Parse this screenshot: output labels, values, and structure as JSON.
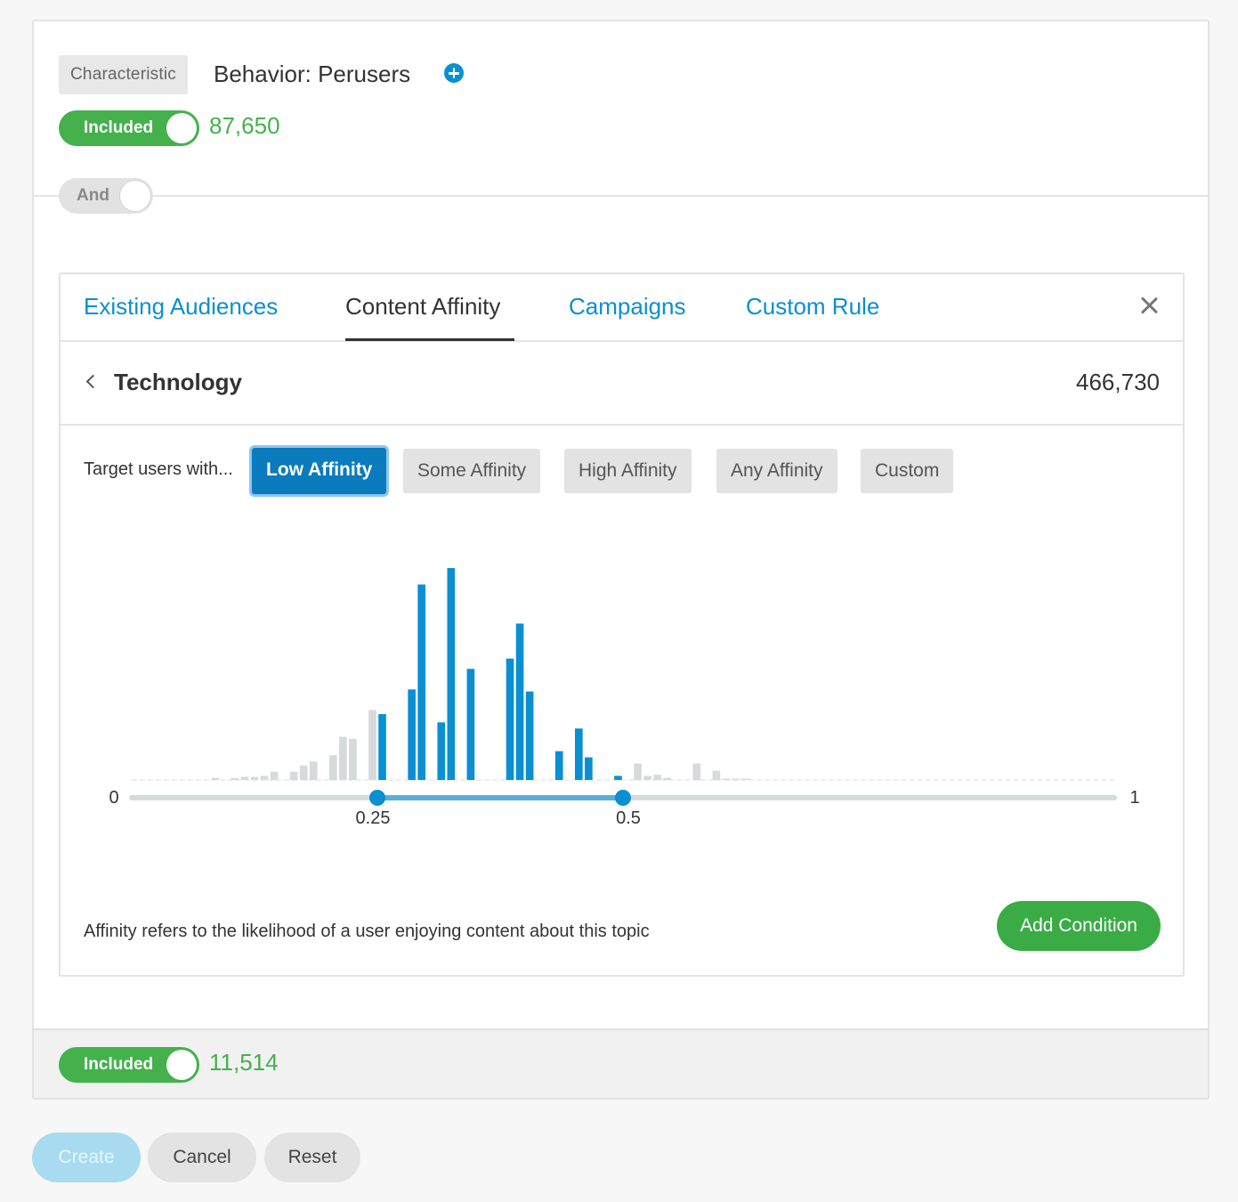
{
  "characteristic": {
    "tag": "Characteristic",
    "title": "Behavior: Perusers",
    "toggle_label": "Included",
    "count": "87,650"
  },
  "connector": {
    "label": "And"
  },
  "panel": {
    "tabs": [
      {
        "label": "Existing Audiences",
        "active": false
      },
      {
        "label": "Content Affinity",
        "active": true
      },
      {
        "label": "Campaigns",
        "active": false
      },
      {
        "label": "Custom Rule",
        "active": false
      }
    ],
    "topic": {
      "name": "Technology",
      "count": "466,730"
    },
    "target_label": "Target users with...",
    "affinity_options": [
      {
        "label": "Low Affinity",
        "selected": true
      },
      {
        "label": "Some Affinity",
        "selected": false
      },
      {
        "label": "High Affinity",
        "selected": false
      },
      {
        "label": "Any Affinity",
        "selected": false
      },
      {
        "label": "Custom",
        "selected": false
      }
    ],
    "footnote": "Affinity refers to the likelihood of a user enjoying content about this topic",
    "add_condition_label": "Add Condition"
  },
  "chart_data": {
    "type": "bar",
    "xlim": [
      0,
      1
    ],
    "x_tick_labels": [
      "0",
      "0.25",
      "0.5",
      "1"
    ],
    "selected_range": [
      0.25,
      0.5
    ],
    "highlight_color": "#0a8fd3",
    "muted_color": "#d6dadb",
    "bin_width": 0.01,
    "values": [
      0,
      0,
      0,
      0,
      0,
      0,
      0,
      0,
      1,
      0,
      1,
      1.5,
      1.5,
      2,
      4,
      0,
      4,
      7,
      9,
      0,
      12,
      21,
      20,
      0,
      34,
      32,
      0,
      0,
      44,
      95,
      0,
      28,
      103,
      0,
      54,
      0,
      0,
      0,
      59,
      76,
      43,
      0,
      0,
      14,
      0,
      25,
      11,
      0,
      0,
      2,
      0,
      8,
      2,
      2.5,
      1,
      0,
      0,
      8,
      0,
      4.5,
      0.5,
      0.5,
      0.3,
      0,
      0,
      0,
      0,
      0,
      0,
      0,
      0,
      0,
      0,
      0,
      0,
      0,
      0,
      0,
      0,
      0,
      0,
      0,
      0,
      0,
      0,
      0,
      0,
      0,
      0,
      0,
      0,
      0,
      0,
      0,
      0,
      0,
      0,
      0,
      0,
      0
    ],
    "ylim": [
      0,
      103
    ]
  },
  "result": {
    "toggle_label": "Included",
    "count": "11,514"
  },
  "actions": {
    "create": "Create",
    "cancel": "Cancel",
    "reset": "Reset"
  }
}
